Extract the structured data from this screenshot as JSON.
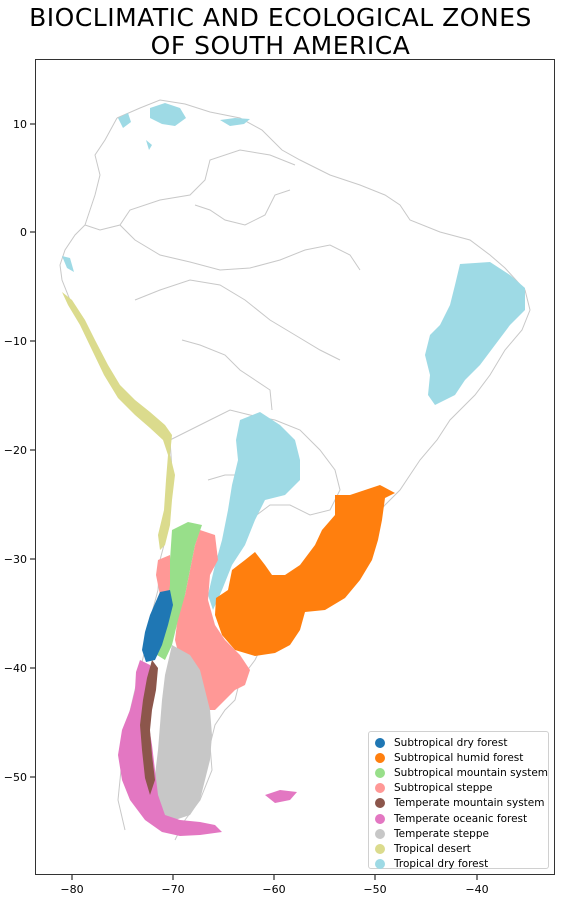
{
  "map": {
    "title_line1": "BIOCLIMATIC AND ECOLOGICAL ZONES",
    "title_line2": "OF SOUTH AMERICA",
    "x_ticks": [
      "−80",
      "−70",
      "−60",
      "−50",
      "−40"
    ],
    "y_ticks": [
      "10",
      "0",
      "−10",
      "−20",
      "−30",
      "−40",
      "−50"
    ],
    "legend": [
      {
        "label": "Subtropical dry forest",
        "color": "#1f77b4"
      },
      {
        "label": "Subtropical humid forest",
        "color": "#ff7f0e"
      },
      {
        "label": "Subtropical mountain system",
        "color": "#98df8a"
      },
      {
        "label": "Subtropical steppe",
        "color": "#ff9896"
      },
      {
        "label": "Temperate mountain system",
        "color": "#8c564b"
      },
      {
        "label": "Temperate oceanic forest",
        "color": "#e377c2"
      },
      {
        "label": "Temperate steppe",
        "color": "#c7c7c7"
      },
      {
        "label": "Tropical desert",
        "color": "#dbdb8d"
      },
      {
        "label": "Tropical dry forest",
        "color": "#9edae5"
      }
    ]
  }
}
